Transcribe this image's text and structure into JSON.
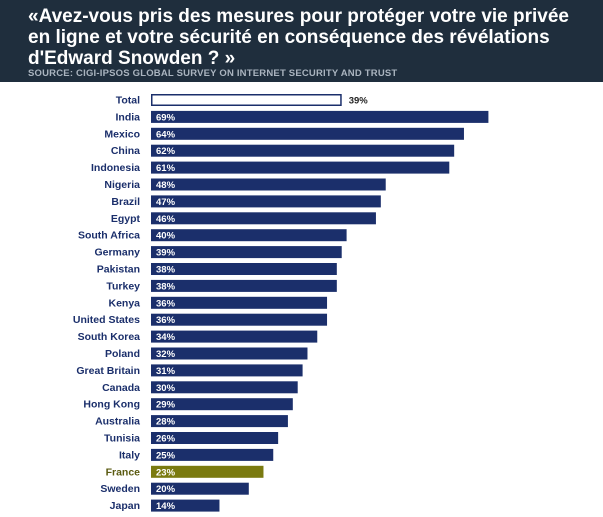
{
  "header": {
    "title": "«Avez-vous pris des mesures pour protéger votre vie privée en ligne et votre sécurité en conséquence des révélations d'Edward Snowden ? »",
    "source": "SOURCE: CIGI-IPSOS GLOBAL SURVEY ON INTERNET SECURITY AND TRUST"
  },
  "colors": {
    "header_bg": "#1f2e3d",
    "bar": "#1b2f6b",
    "highlight": "#7a7a10",
    "label": "#1b2f6b",
    "highlight_label": "#5a5a10"
  },
  "chart_data": {
    "type": "bar",
    "orientation": "horizontal",
    "title": "«Avez-vous pris des mesures pour protéger votre vie privée en ligne et votre sécurité en conséquence des révélations d'Edward Snowden ? »",
    "xlim": [
      0,
      100
    ],
    "categories": [
      "Total",
      "India",
      "Mexico",
      "China",
      "Indonesia",
      "Nigeria",
      "Brazil",
      "Egypt",
      "South Africa",
      "Germany",
      "Pakistan",
      "Turkey",
      "Kenya",
      "United States",
      "South Korea",
      "Poland",
      "Great Britain",
      "Canada",
      "Hong Kong",
      "Australia",
      "Tunisia",
      "Italy",
      "France",
      "Sweden",
      "Japan"
    ],
    "values": [
      39,
      69,
      64,
      62,
      61,
      48,
      47,
      46,
      40,
      39,
      38,
      38,
      36,
      36,
      34,
      32,
      31,
      30,
      29,
      28,
      26,
      25,
      23,
      20,
      14
    ],
    "value_labels": [
      "39%",
      "69%",
      "64%",
      "62%",
      "61%",
      "48%",
      "47%",
      "46%",
      "40%",
      "39%",
      "38%",
      "38%",
      "36%",
      "36%",
      "34%",
      "32%",
      "31%",
      "30%",
      "29%",
      "28%",
      "26%",
      "25%",
      "23%",
      "20%",
      "14%"
    ],
    "outlined_category": "Total",
    "highlighted_category": "France"
  }
}
